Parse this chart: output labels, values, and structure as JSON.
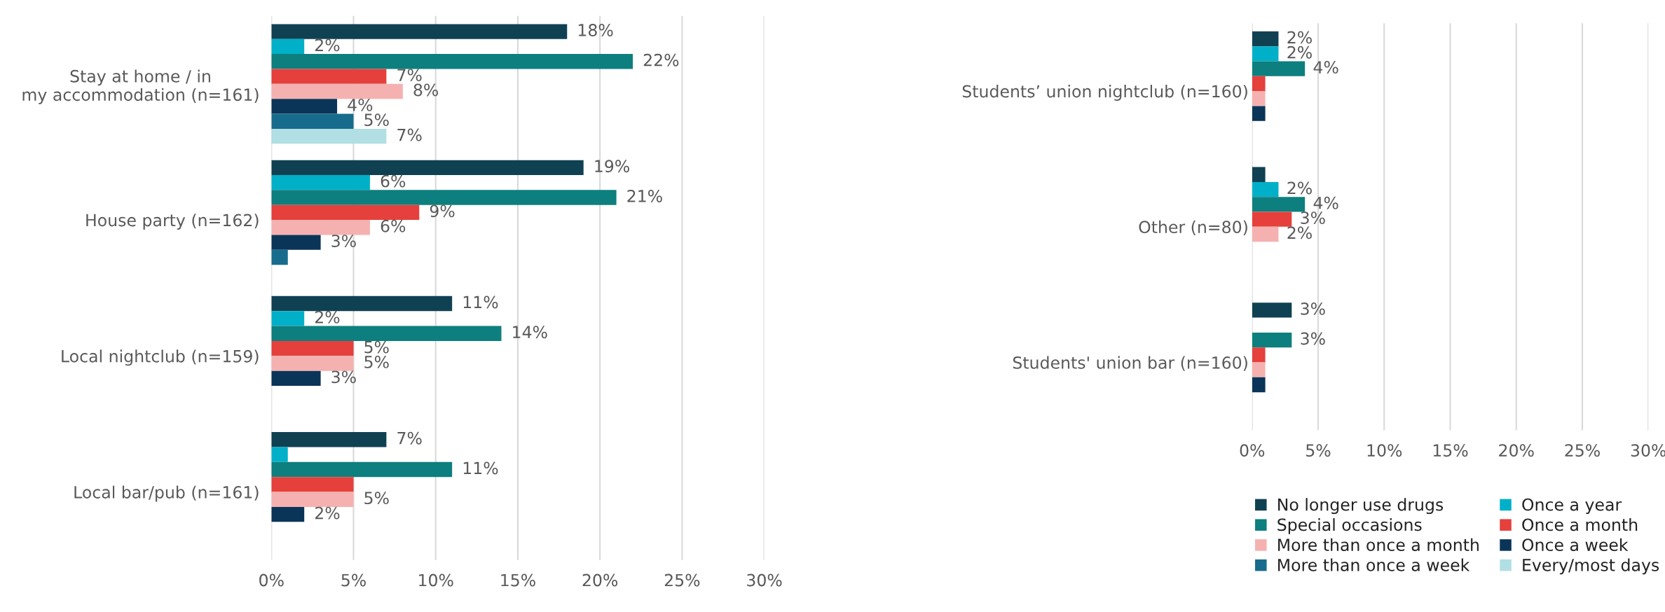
{
  "chart_data": [
    {
      "type": "bar",
      "orientation": "horizontal",
      "categories": [
        "Stay at home / in my accommodation (n=161)",
        "House party (n=162)",
        "Local nightclub (n=159)",
        "Local bar/pub (n=161)"
      ],
      "xlim": [
        0,
        30
      ],
      "xticks": [
        {
          "value": 0,
          "label": "0%"
        },
        {
          "value": 5,
          "label": "5%"
        },
        {
          "value": 10,
          "label": "10%"
        },
        {
          "value": 15,
          "label": "15%"
        },
        {
          "value": 20,
          "label": "20%"
        },
        {
          "value": 25,
          "label": "25%"
        },
        {
          "value": 30,
          "label": "30%"
        }
      ],
      "grid": "x",
      "legend": false,
      "series": [
        {
          "color": "#0f4152",
          "values": [
            18,
            19,
            11,
            7
          ],
          "value_labels": [
            "18%",
            "19%",
            "11%",
            "7%"
          ]
        },
        {
          "color": "#00b0c8",
          "values": [
            2,
            6,
            2,
            1
          ],
          "value_labels": [
            "2%",
            "6%",
            "2%",
            null
          ]
        },
        {
          "color": "#0d7f7e",
          "values": [
            22,
            21,
            14,
            11
          ],
          "value_labels": [
            "22%",
            "21%",
            "14%",
            "11%"
          ]
        },
        {
          "color": "#e5403c",
          "values": [
            7,
            9,
            5,
            5
          ],
          "value_labels": [
            "7%",
            "9%",
            "5%",
            null
          ]
        },
        {
          "color": "#f5b1b0",
          "values": [
            8,
            6,
            5,
            5
          ],
          "value_labels": [
            "8%",
            "6%",
            "5%",
            "5%"
          ]
        },
        {
          "color": "#0a3558",
          "values": [
            4,
            3,
            3,
            2
          ],
          "value_labels": [
            "4%",
            "3%",
            "3%",
            "2%"
          ]
        },
        {
          "color": "#176c8d",
          "values": [
            5,
            1,
            null,
            null
          ],
          "value_labels": [
            "5%",
            null,
            null,
            null
          ]
        },
        {
          "color": "#b1dfe3",
          "values": [
            7,
            null,
            null,
            null
          ],
          "value_labels": [
            "7%",
            null,
            null,
            null
          ]
        }
      ]
    },
    {
      "type": "bar",
      "orientation": "horizontal",
      "categories": [
        "Students’ union nightclub (n=160)",
        "Other (n=80)",
        "Students' union bar (n=160)"
      ],
      "xlim": [
        0,
        30
      ],
      "xticks": [
        {
          "value": 0,
          "label": "0%"
        },
        {
          "value": 5,
          "label": "5%"
        },
        {
          "value": 10,
          "label": "10%"
        },
        {
          "value": 15,
          "label": "15%"
        },
        {
          "value": 20,
          "label": "20%"
        },
        {
          "value": 25,
          "label": "25%"
        },
        {
          "value": 30,
          "label": "30%"
        }
      ],
      "grid": "x",
      "legend": "bottom",
      "series": [
        {
          "name": "No longer use drugs",
          "color": "#0f4152",
          "values": [
            2,
            1,
            3
          ],
          "value_labels": [
            "2%",
            null,
            "3%"
          ]
        },
        {
          "name": "Once a year",
          "color": "#00b0c8",
          "values": [
            2,
            2,
            null
          ],
          "value_labels": [
            "2%",
            "2%",
            null
          ]
        },
        {
          "name": "Special occasions",
          "color": "#0d7f7e",
          "values": [
            4,
            4,
            3
          ],
          "value_labels": [
            "4%",
            "4%",
            "3%"
          ]
        },
        {
          "name": "Once a month",
          "color": "#e5403c",
          "values": [
            1,
            3,
            1
          ],
          "value_labels": [
            null,
            "3%",
            null
          ]
        },
        {
          "name": "More than once a month",
          "color": "#f5b1b0",
          "values": [
            1,
            2,
            1
          ],
          "value_labels": [
            null,
            "2%",
            null
          ]
        },
        {
          "name": "Once a week",
          "color": "#0a3558",
          "values": [
            1,
            null,
            1
          ],
          "value_labels": [
            null,
            null,
            null
          ]
        },
        {
          "name": "More than once a week",
          "color": "#176c8d",
          "values": [
            null,
            null,
            null
          ],
          "value_labels": [
            null,
            null,
            null
          ]
        },
        {
          "name": "Every/most days",
          "color": "#b1dfe3",
          "values": [
            null,
            null,
            null
          ],
          "value_labels": [
            null,
            null,
            null
          ]
        }
      ]
    }
  ]
}
